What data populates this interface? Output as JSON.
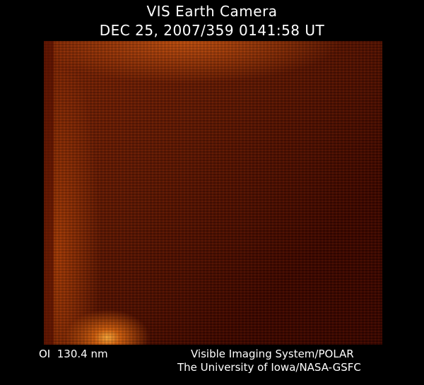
{
  "header": {
    "title": "VIS Earth Camera",
    "timestamp": "DEC 25, 2007/359 0141:58 UT"
  },
  "image": {
    "colormap": [
      "#000000",
      "#5a1603",
      "#d06010",
      "#ffb040"
    ]
  },
  "footer": {
    "band": "OI  130.4 nm",
    "instrument": "Visible Imaging System/POLAR",
    "institution": "The University of Iowa/NASA-GSFC"
  }
}
